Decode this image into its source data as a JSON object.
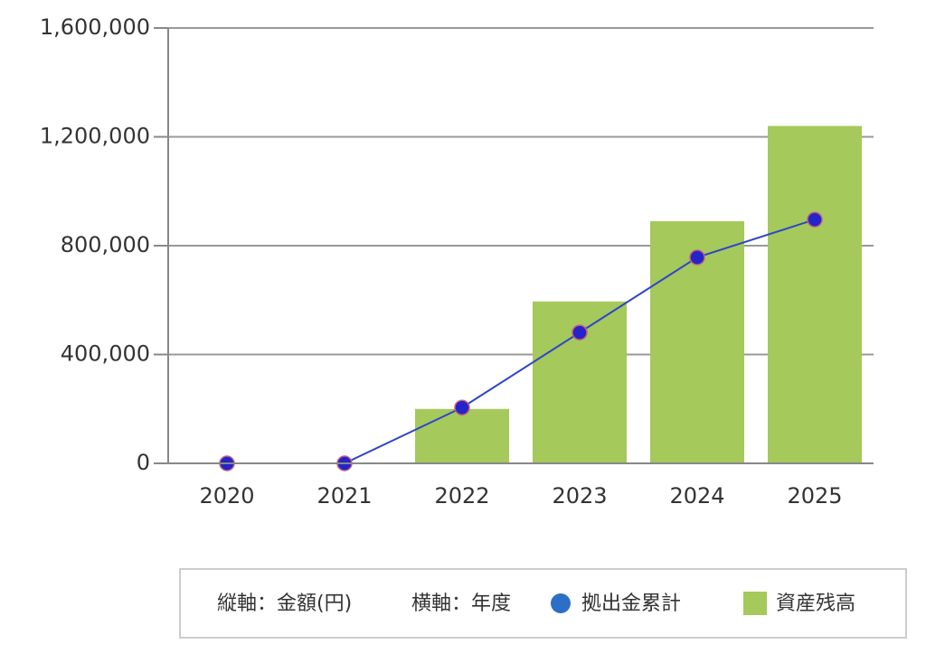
{
  "chart_data": {
    "type": "bar",
    "categories": [
      "2020",
      "2021",
      "2022",
      "2023",
      "2024",
      "2025"
    ],
    "series": [
      {
        "name": "拠出金累計",
        "type": "line",
        "color": "#2f45c9",
        "marker_color": "#2424c8",
        "values": [
          0,
          0,
          205000,
          481000,
          757000,
          896000
        ]
      },
      {
        "name": "資産残高",
        "type": "bar",
        "color": "#a5c95b",
        "values": [
          0,
          0,
          200000,
          595000,
          890000,
          1240000
        ]
      }
    ],
    "y_label": "縦軸：金額(円)",
    "x_label": "横軸：年度",
    "ylim": [
      0,
      1600000
    ],
    "yticks": [
      0,
      {
        "value": 400000,
        "label": "400,000"
      },
      {
        "value": 800000,
        "label": "800,000"
      },
      {
        "value": 1200000,
        "label": "1,200,000"
      },
      {
        "value": 1600000,
        "label": "1,600,000"
      }
    ],
    "grid": true
  }
}
